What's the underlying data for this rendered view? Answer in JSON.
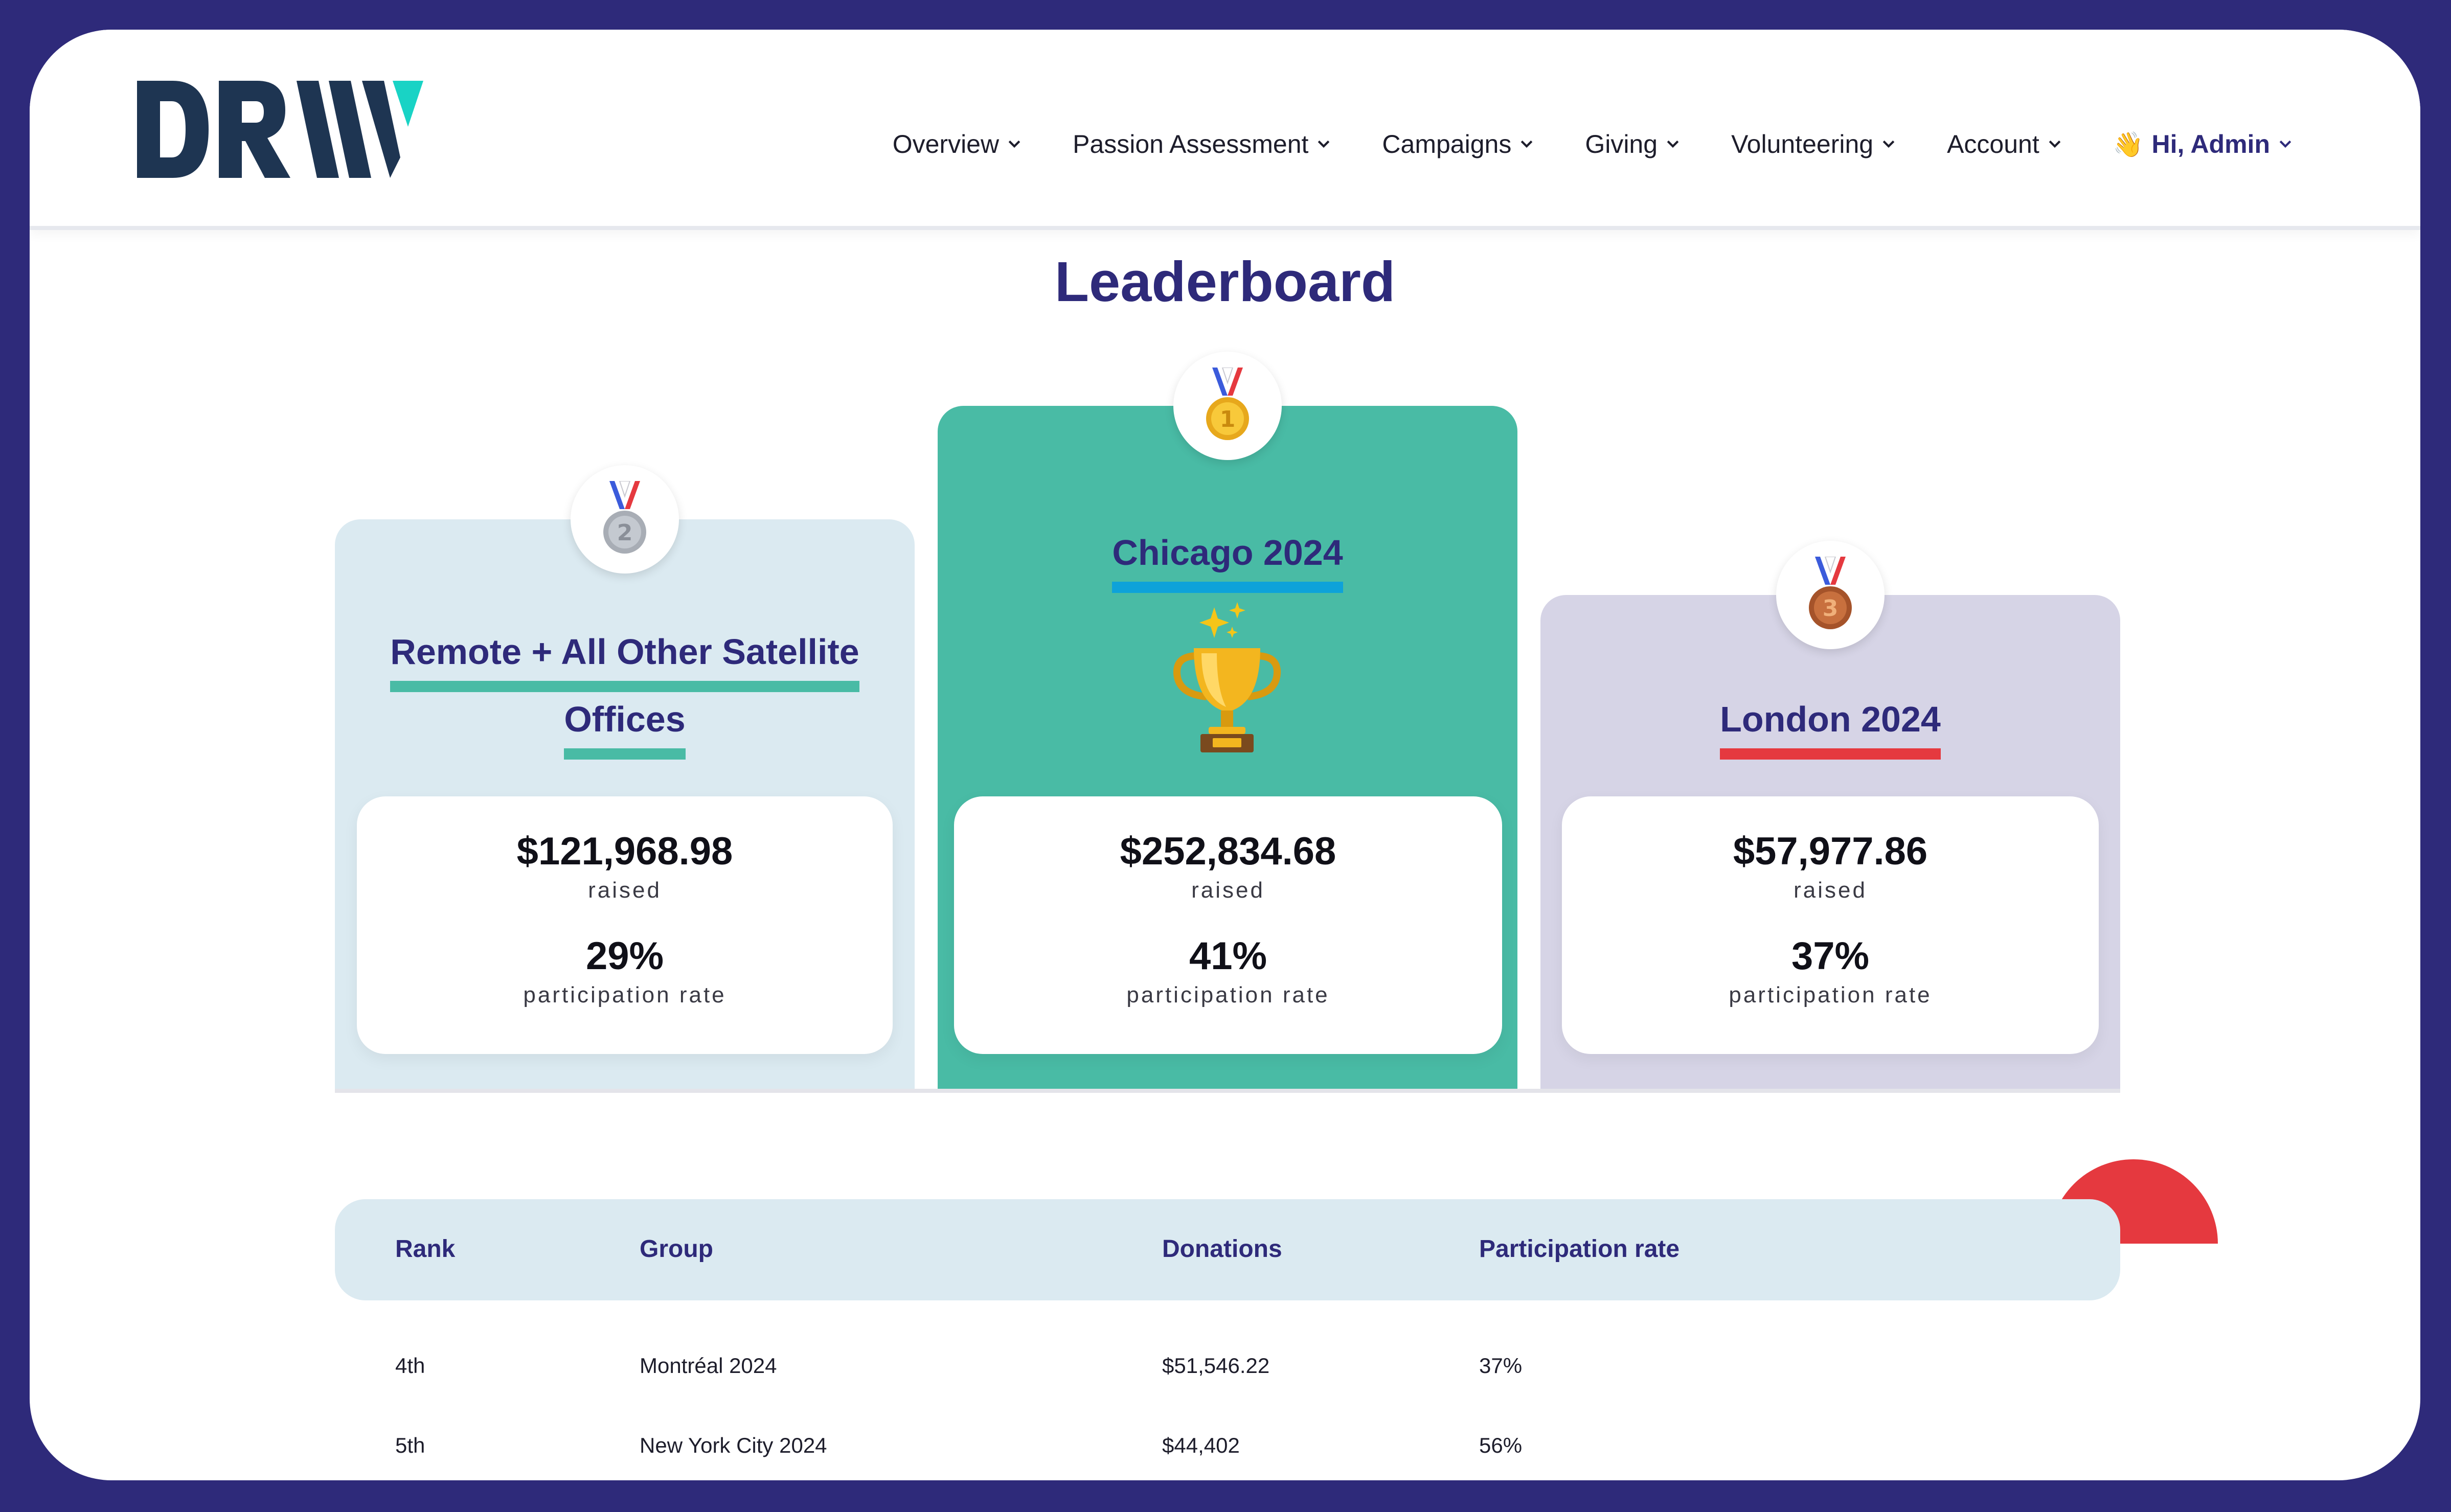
{
  "header": {
    "logo_text": "DRW",
    "nav": [
      {
        "label": "Overview"
      },
      {
        "label": "Passion Assessment"
      },
      {
        "label": "Campaigns"
      },
      {
        "label": "Giving"
      },
      {
        "label": "Volunteering"
      },
      {
        "label": "Account"
      }
    ],
    "user": {
      "icon": "wave-icon",
      "label": "Hi, Admin"
    }
  },
  "page_title": "Leaderboard",
  "podium": [
    {
      "rank": 2,
      "medal_icon": "silver-medal-icon",
      "group": "Remote + All Other Satellite Offices",
      "group_line1": "Remote + All Other Satellite",
      "group_line2": "Offices",
      "amount": "$121,968.98",
      "amount_label": "raised",
      "participation": "29%",
      "participation_label": "participation rate",
      "underline_color": "#49bba5",
      "bg_color": "#dbeaf1"
    },
    {
      "rank": 1,
      "medal_icon": "gold-medal-icon",
      "group": "Chicago 2024",
      "amount": "$252,834.68",
      "amount_label": "raised",
      "participation": "41%",
      "participation_label": "participation rate",
      "underline_color": "#0ea2d9",
      "bg_color": "#49bba5",
      "extra_icon": "trophy-icon"
    },
    {
      "rank": 3,
      "medal_icon": "bronze-medal-icon",
      "group": "London 2024",
      "amount": "$57,977.86",
      "amount_label": "raised",
      "participation": "37%",
      "participation_label": "participation rate",
      "underline_color": "#e5393f",
      "bg_color": "#d6d4e6"
    }
  ],
  "table": {
    "headers": {
      "rank": "Rank",
      "group": "Group",
      "donations": "Donations",
      "participation": "Participation rate"
    },
    "rows": [
      {
        "rank": "4th",
        "group": "Montréal 2024",
        "donations": "$51,546.22",
        "participation": "37%"
      },
      {
        "rank": "5th",
        "group": "New York City 2024",
        "donations": "$44,402",
        "participation": "56%"
      }
    ]
  },
  "colors": {
    "brand_navy": "#2e2a7a",
    "teal": "#49bba5",
    "red": "#e5393f",
    "light_blue": "#dbeaf1",
    "lavender": "#d6d4e6",
    "logo_accent": "#19d3c5",
    "logo_dark": "#1e3552"
  }
}
